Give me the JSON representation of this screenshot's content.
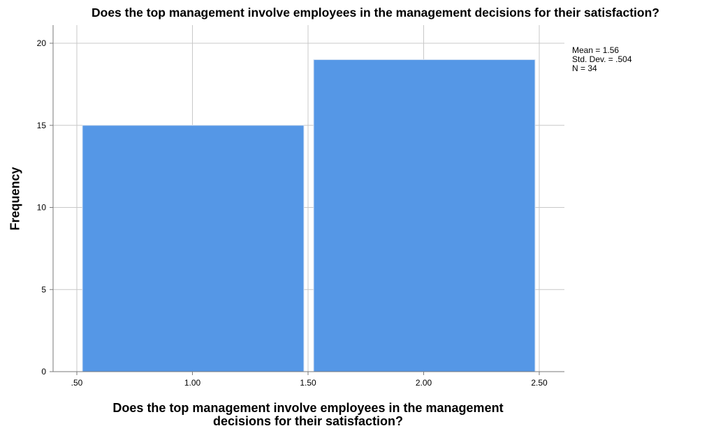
{
  "chart_data": {
    "type": "bar",
    "title": "Does the top management involve employees in the management decisions for their satisfaction?",
    "xlabel_lines": [
      "Does the top management involve employees in the management",
      "decisions for their satisfaction?"
    ],
    "ylabel": "Frequency",
    "bins": [
      {
        "start": 0.5,
        "end": 1.5,
        "value": 15
      },
      {
        "start": 1.5,
        "end": 2.5,
        "value": 19
      }
    ],
    "xlim": [
      0.5,
      2.5
    ],
    "ylim": [
      0,
      21
    ],
    "x_ticks": [
      {
        "value": 0.5,
        "label": ".50"
      },
      {
        "value": 1.0,
        "label": "1.00"
      },
      {
        "value": 1.5,
        "label": "1.50"
      },
      {
        "value": 2.0,
        "label": "2.00"
      },
      {
        "value": 2.5,
        "label": "2.50"
      }
    ],
    "y_ticks": [
      {
        "value": 0,
        "label": "0"
      },
      {
        "value": 5,
        "label": "5"
      },
      {
        "value": 10,
        "label": "10"
      },
      {
        "value": 15,
        "label": "15"
      },
      {
        "value": 20,
        "label": "20"
      }
    ],
    "stats": [
      "Mean = 1.56",
      "Std. Dev. = .504",
      "N = 34"
    ],
    "grid": true,
    "colors": {
      "bar": "#5597e6",
      "bar_edge": "#d7e3f4",
      "grid": "#c8c8c8",
      "axis": "#7a7a7a"
    }
  }
}
